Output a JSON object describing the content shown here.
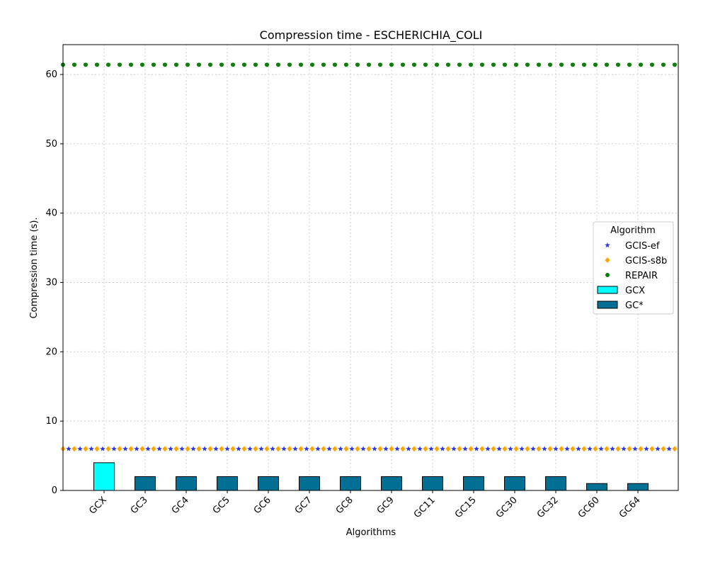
{
  "chart_data": {
    "type": "bar",
    "title": "Compression time -  ESCHERICHIA_COLI",
    "xlabel": "Algorithms",
    "ylabel": "Compression time (s).",
    "ylim": [
      0,
      64.3
    ],
    "yticks": [
      0,
      10,
      20,
      30,
      40,
      50,
      60
    ],
    "grid": true,
    "legend_title": "Algorithm",
    "legend_position": "center-right",
    "categories": [
      "GCX",
      "GC3",
      "GC4",
      "GC5",
      "GC6",
      "GC7",
      "GC8",
      "GC9",
      "GC11",
      "GC15",
      "GC30",
      "GC32",
      "GC60",
      "GC64"
    ],
    "bar_series": [
      {
        "name": "GCX",
        "color": "#00ffff",
        "values": [
          4,
          null,
          null,
          null,
          null,
          null,
          null,
          null,
          null,
          null,
          null,
          null,
          null,
          null
        ]
      },
      {
        "name": "GC*",
        "color": "#016f93",
        "values": [
          null,
          2,
          2,
          2,
          2,
          2,
          2,
          2,
          2,
          2,
          2,
          2,
          1,
          1
        ]
      }
    ],
    "line_series": [
      {
        "name": "GCIS-ef",
        "marker": "star",
        "color": "#3a35e0",
        "value": 6
      },
      {
        "name": "GCIS-s8b",
        "marker": "diamond",
        "color": "#ffa500",
        "value": 6
      },
      {
        "name": "REPAIR",
        "marker": "circle",
        "color": "#008000",
        "value": 61.4
      }
    ]
  }
}
